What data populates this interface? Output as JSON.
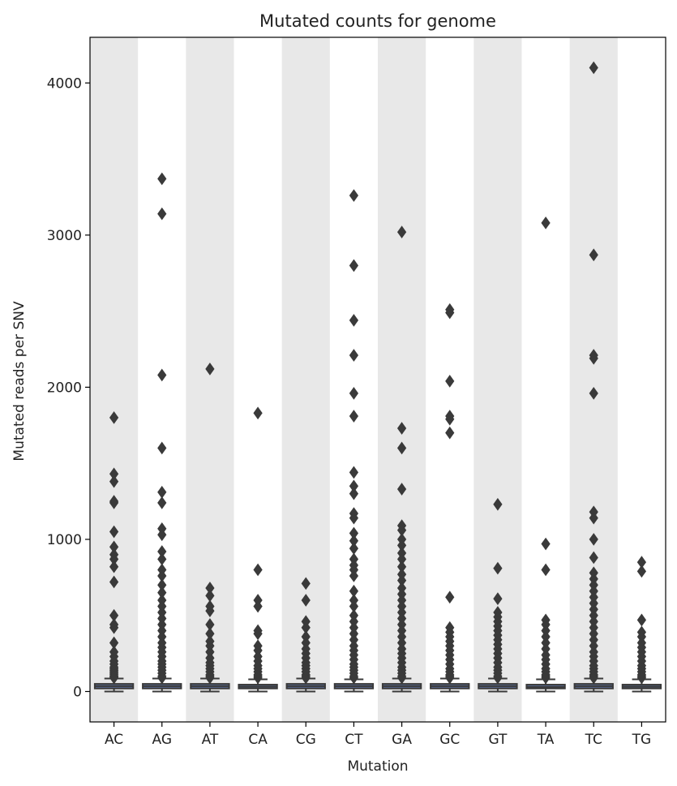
{
  "chart_data": {
    "type": "box",
    "title": "Mutated counts for genome",
    "xlabel": "Mutation",
    "ylabel": "Mutated reads per SNV",
    "categories": [
      "AC",
      "AG",
      "AT",
      "CA",
      "CG",
      "CT",
      "GA",
      "GC",
      "GT",
      "TA",
      "TC",
      "TG"
    ],
    "ylim": [
      -200,
      4300
    ],
    "yticks": [
      0,
      1000,
      2000,
      3000,
      4000
    ],
    "grid": false,
    "legend": "none",
    "band_color": "#e8e8e8",
    "box_color": "#3a3a3a",
    "series": [
      {
        "category": "AC",
        "q1": 20,
        "median": 35,
        "q3": 50,
        "whisker_low": 0,
        "whisker_high": 85,
        "outliers": [
          1800,
          1430,
          1380,
          1250,
          1240,
          1050,
          950,
          900,
          870,
          820,
          720,
          500,
          440,
          420,
          320,
          260,
          230,
          200,
          180,
          160,
          150,
          140,
          130,
          120,
          110,
          100,
          95,
          90
        ]
      },
      {
        "category": "AG",
        "q1": 20,
        "median": 35,
        "q3": 50,
        "whisker_low": 0,
        "whisker_high": 85,
        "outliers": [
          3370,
          3140,
          2080,
          1600,
          1310,
          1240,
          1070,
          1030,
          920,
          870,
          800,
          760,
          700,
          650,
          600,
          560,
          520,
          480,
          440,
          400,
          360,
          320,
          290,
          260,
          230,
          200,
          180,
          160,
          140,
          120,
          100,
          90
        ]
      },
      {
        "category": "AT",
        "q1": 20,
        "median": 35,
        "q3": 50,
        "whisker_low": 0,
        "whisker_high": 85,
        "outliers": [
          2120,
          680,
          630,
          560,
          530,
          440,
          380,
          330,
          300,
          260,
          220,
          190,
          170,
          150,
          130,
          110,
          100,
          90
        ]
      },
      {
        "category": "CA",
        "q1": 20,
        "median": 32,
        "q3": 45,
        "whisker_low": 0,
        "whisker_high": 80,
        "outliers": [
          1830,
          800,
          600,
          560,
          400,
          380,
          300,
          270,
          230,
          200,
          170,
          150,
          130,
          110,
          100,
          90
        ]
      },
      {
        "category": "CG",
        "q1": 20,
        "median": 35,
        "q3": 50,
        "whisker_low": 0,
        "whisker_high": 85,
        "outliers": [
          710,
          600,
          460,
          420,
          360,
          320,
          280,
          250,
          220,
          190,
          170,
          150,
          130,
          110,
          100,
          90
        ]
      },
      {
        "category": "CT",
        "q1": 20,
        "median": 35,
        "q3": 50,
        "whisker_low": 0,
        "whisker_high": 80,
        "outliers": [
          3260,
          2800,
          2440,
          2210,
          1960,
          1810,
          1440,
          1350,
          1300,
          1170,
          1140,
          1040,
          990,
          940,
          870,
          830,
          800,
          760,
          660,
          600,
          560,
          500,
          460,
          420,
          380,
          340,
          300,
          270,
          240,
          210,
          180,
          160,
          140,
          120,
          100,
          90
        ]
      },
      {
        "category": "GA",
        "q1": 20,
        "median": 35,
        "q3": 50,
        "whisker_low": 0,
        "whisker_high": 85,
        "outliers": [
          3020,
          1730,
          1600,
          1330,
          1090,
          1060,
          1000,
          960,
          910,
          870,
          820,
          770,
          730,
          680,
          640,
          600,
          560,
          520,
          480,
          440,
          400,
          360,
          320,
          280,
          250,
          220,
          190,
          160,
          140,
          120,
          100,
          90
        ]
      },
      {
        "category": "GC",
        "q1": 20,
        "median": 35,
        "q3": 50,
        "whisker_low": 0,
        "whisker_high": 85,
        "outliers": [
          2510,
          2490,
          2040,
          1810,
          1790,
          1700,
          620,
          420,
          390,
          360,
          330,
          300,
          270,
          240,
          210,
          180,
          150,
          130,
          110,
          100,
          90
        ]
      },
      {
        "category": "GT",
        "q1": 20,
        "median": 35,
        "q3": 50,
        "whisker_low": 0,
        "whisker_high": 85,
        "outliers": [
          1230,
          810,
          610,
          520,
          490,
          460,
          430,
          400,
          370,
          340,
          310,
          280,
          250,
          220,
          190,
          160,
          140,
          120,
          100,
          90
        ]
      },
      {
        "category": "TA",
        "q1": 20,
        "median": 30,
        "q3": 45,
        "whisker_low": 0,
        "whisker_high": 80,
        "outliers": [
          3080,
          970,
          800,
          470,
          440,
          400,
          360,
          320,
          280,
          240,
          210,
          180,
          150,
          130,
          110,
          100,
          90
        ]
      },
      {
        "category": "TC",
        "q1": 20,
        "median": 35,
        "q3": 50,
        "whisker_low": 0,
        "whisker_high": 85,
        "outliers": [
          4100,
          2870,
          2210,
          2190,
          1960,
          1180,
          1140,
          1000,
          880,
          780,
          740,
          700,
          660,
          620,
          580,
          540,
          500,
          460,
          420,
          380,
          340,
          300,
          260,
          230,
          200,
          170,
          150,
          130,
          110,
          100,
          90
        ]
      },
      {
        "category": "TG",
        "q1": 20,
        "median": 32,
        "q3": 45,
        "whisker_low": 0,
        "whisker_high": 80,
        "outliers": [
          850,
          790,
          470,
          390,
          360,
          320,
          290,
          260,
          230,
          200,
          170,
          150,
          130,
          110,
          100,
          90
        ]
      }
    ]
  }
}
